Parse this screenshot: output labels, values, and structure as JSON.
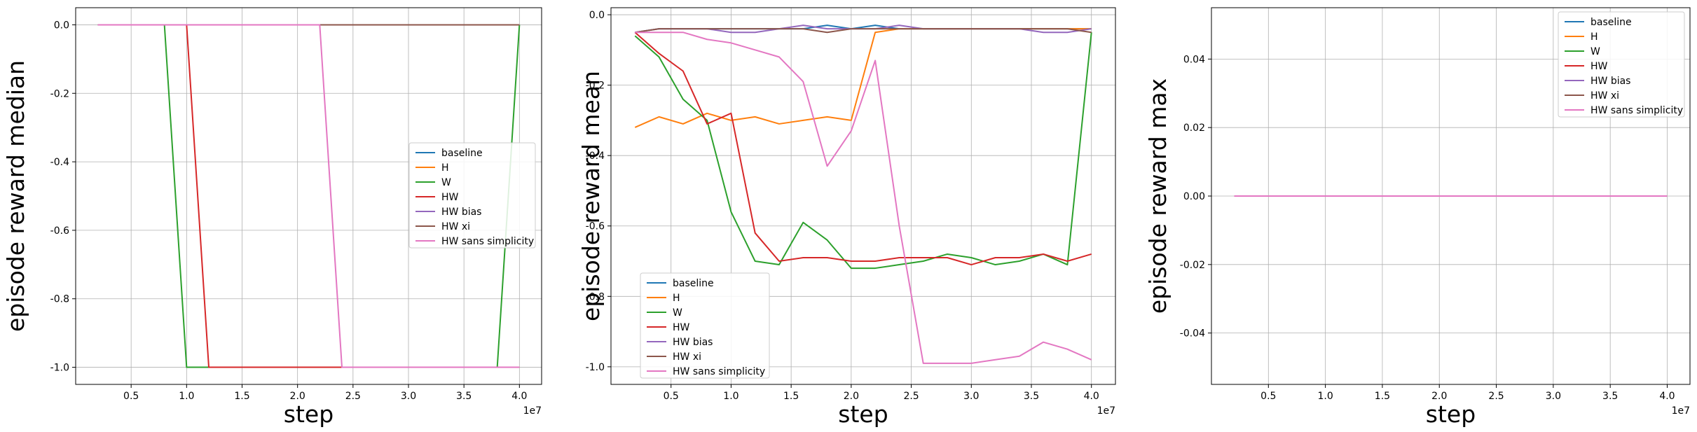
{
  "chart_data": [
    {
      "type": "line",
      "title": "",
      "xlabel": "step",
      "ylabel": "episode reward median",
      "x_offset_label": "1e7",
      "xlim": [
        0,
        4.2
      ],
      "ylim": [
        -1.05,
        0.05
      ],
      "xticks": [
        "0.5",
        "1.0",
        "1.5",
        "2.0",
        "2.5",
        "3.0",
        "3.5",
        "4.0"
      ],
      "yticks": [
        "-1.0",
        "-0.8",
        "-0.6",
        "-0.4",
        "-0.2",
        "0.0"
      ],
      "grid": true,
      "legend_position": "center-right",
      "x": [
        0.2,
        0.4,
        0.6,
        0.8,
        1.0,
        1.2,
        1.4,
        1.6,
        1.8,
        2.0,
        2.2,
        2.4,
        2.6,
        2.8,
        3.0,
        3.2,
        3.4,
        3.6,
        3.8,
        4.0
      ],
      "series": [
        {
          "name": "baseline",
          "color": "#1f77b4",
          "values": [
            0,
            0,
            0,
            0,
            0,
            0,
            0,
            0,
            0,
            0,
            0,
            0,
            0,
            0,
            0,
            0,
            0,
            0,
            0,
            0
          ]
        },
        {
          "name": "H",
          "color": "#ff7f0e",
          "values": [
            0,
            0,
            0,
            0,
            0,
            0,
            0,
            0,
            0,
            0,
            0,
            0,
            0,
            0,
            0,
            0,
            0,
            0,
            0,
            0
          ]
        },
        {
          "name": "W",
          "color": "#2ca02c",
          "values": [
            0,
            0,
            0,
            0,
            -1,
            -1,
            -1,
            -1,
            -1,
            -1,
            -1,
            -1,
            -1,
            -1,
            -1,
            -1,
            -1,
            -1,
            -1,
            0
          ]
        },
        {
          "name": "HW",
          "color": "#d62728",
          "values": [
            0,
            0,
            0,
            0,
            0,
            -1,
            -1,
            -1,
            -1,
            -1,
            -1,
            -1,
            -1,
            -1,
            -1,
            -1,
            -1,
            -1,
            -1,
            -1
          ]
        },
        {
          "name": "HW bias",
          "color": "#9467bd",
          "values": [
            0,
            0,
            0,
            0,
            0,
            0,
            0,
            0,
            0,
            0,
            0,
            0,
            0,
            0,
            0,
            0,
            0,
            0,
            0,
            0
          ]
        },
        {
          "name": "HW xi",
          "color": "#8c564b",
          "values": [
            0,
            0,
            0,
            0,
            0,
            0,
            0,
            0,
            0,
            0,
            0,
            0,
            0,
            0,
            0,
            0,
            0,
            0,
            0,
            0
          ]
        },
        {
          "name": "HW sans simplicity",
          "color": "#e377c2",
          "values": [
            0,
            0,
            0,
            0,
            0,
            0,
            0,
            0,
            0,
            0,
            0,
            -1,
            -1,
            -1,
            -1,
            -1,
            -1,
            -1,
            -1,
            -1
          ]
        }
      ]
    },
    {
      "type": "line",
      "title": "",
      "xlabel": "step",
      "ylabel": "episode reward mean",
      "x_offset_label": "1e7",
      "xlim": [
        0,
        4.2
      ],
      "ylim": [
        -1.05,
        0.02
      ],
      "xticks": [
        "0.5",
        "1.0",
        "1.5",
        "2.0",
        "2.5",
        "3.0",
        "3.5",
        "4.0"
      ],
      "yticks": [
        "-1.0",
        "-0.8",
        "-0.6",
        "-0.4",
        "-0.2",
        "0.0"
      ],
      "grid": true,
      "legend_position": "lower-left",
      "x": [
        0.2,
        0.4,
        0.6,
        0.8,
        1.0,
        1.2,
        1.4,
        1.6,
        1.8,
        2.0,
        2.2,
        2.4,
        2.6,
        2.8,
        3.0,
        3.2,
        3.4,
        3.6,
        3.8,
        4.0
      ],
      "series": [
        {
          "name": "baseline",
          "color": "#1f77b4",
          "values": [
            -0.05,
            -0.04,
            -0.04,
            -0.04,
            -0.04,
            -0.04,
            -0.04,
            -0.04,
            -0.03,
            -0.04,
            -0.03,
            -0.04,
            -0.04,
            -0.04,
            -0.04,
            -0.04,
            -0.04,
            -0.04,
            -0.04,
            -0.04
          ]
        },
        {
          "name": "H",
          "color": "#ff7f0e",
          "values": [
            -0.32,
            -0.29,
            -0.31,
            -0.28,
            -0.3,
            -0.29,
            -0.31,
            -0.3,
            -0.29,
            -0.3,
            -0.05,
            -0.04,
            -0.04,
            -0.04,
            -0.04,
            -0.04,
            -0.04,
            -0.04,
            -0.04,
            -0.04
          ]
        },
        {
          "name": "W",
          "color": "#2ca02c",
          "values": [
            -0.06,
            -0.12,
            -0.24,
            -0.3,
            -0.56,
            -0.7,
            -0.71,
            -0.59,
            -0.64,
            -0.72,
            -0.72,
            -0.71,
            -0.7,
            -0.68,
            -0.69,
            -0.71,
            -0.7,
            -0.68,
            -0.71,
            -0.05
          ]
        },
        {
          "name": "HW",
          "color": "#d62728",
          "values": [
            -0.05,
            -0.11,
            -0.16,
            -0.31,
            -0.28,
            -0.62,
            -0.7,
            -0.69,
            -0.69,
            -0.7,
            -0.7,
            -0.69,
            -0.69,
            -0.69,
            -0.71,
            -0.69,
            -0.69,
            -0.68,
            -0.7,
            -0.68
          ]
        },
        {
          "name": "HW bias",
          "color": "#9467bd",
          "values": [
            -0.05,
            -0.04,
            -0.04,
            -0.04,
            -0.05,
            -0.05,
            -0.04,
            -0.03,
            -0.04,
            -0.04,
            -0.04,
            -0.03,
            -0.04,
            -0.04,
            -0.04,
            -0.04,
            -0.04,
            -0.05,
            -0.05,
            -0.04
          ]
        },
        {
          "name": "HW xi",
          "color": "#8c564b",
          "values": [
            -0.05,
            -0.04,
            -0.04,
            -0.04,
            -0.04,
            -0.04,
            -0.04,
            -0.04,
            -0.05,
            -0.04,
            -0.04,
            -0.04,
            -0.04,
            -0.04,
            -0.04,
            -0.04,
            -0.04,
            -0.04,
            -0.04,
            -0.05
          ]
        },
        {
          "name": "HW sans simplicity",
          "color": "#e377c2",
          "values": [
            -0.05,
            -0.05,
            -0.05,
            -0.07,
            -0.08,
            -0.1,
            -0.12,
            -0.19,
            -0.43,
            -0.33,
            -0.13,
            -0.6,
            -0.99,
            -0.99,
            -0.99,
            -0.98,
            -0.97,
            -0.93,
            -0.95,
            -0.98
          ]
        }
      ]
    },
    {
      "type": "line",
      "title": "",
      "xlabel": "step",
      "ylabel": "episode reward max",
      "x_offset_label": "1e7",
      "xlim": [
        0,
        4.2
      ],
      "ylim": [
        -0.055,
        0.055
      ],
      "xticks": [
        "0.5",
        "1.0",
        "1.5",
        "2.0",
        "2.5",
        "3.0",
        "3.5",
        "4.0"
      ],
      "yticks": [
        "-0.04",
        "-0.02",
        "0.00",
        "0.02",
        "0.04"
      ],
      "grid": true,
      "legend_position": "top-right",
      "x": [
        0.2,
        0.4,
        0.6,
        0.8,
        1.0,
        1.2,
        1.4,
        1.6,
        1.8,
        2.0,
        2.2,
        2.4,
        2.6,
        2.8,
        3.0,
        3.2,
        3.4,
        3.6,
        3.8,
        4.0
      ],
      "series": [
        {
          "name": "baseline",
          "color": "#1f77b4",
          "values": [
            0,
            0,
            0,
            0,
            0,
            0,
            0,
            0,
            0,
            0,
            0,
            0,
            0,
            0,
            0,
            0,
            0,
            0,
            0,
            0
          ]
        },
        {
          "name": "H",
          "color": "#ff7f0e",
          "values": [
            0,
            0,
            0,
            0,
            0,
            0,
            0,
            0,
            0,
            0,
            0,
            0,
            0,
            0,
            0,
            0,
            0,
            0,
            0,
            0
          ]
        },
        {
          "name": "W",
          "color": "#2ca02c",
          "values": [
            0,
            0,
            0,
            0,
            0,
            0,
            0,
            0,
            0,
            0,
            0,
            0,
            0,
            0,
            0,
            0,
            0,
            0,
            0,
            0
          ]
        },
        {
          "name": "HW",
          "color": "#d62728",
          "values": [
            0,
            0,
            0,
            0,
            0,
            0,
            0,
            0,
            0,
            0,
            0,
            0,
            0,
            0,
            0,
            0,
            0,
            0,
            0,
            0
          ]
        },
        {
          "name": "HW bias",
          "color": "#9467bd",
          "values": [
            0,
            0,
            0,
            0,
            0,
            0,
            0,
            0,
            0,
            0,
            0,
            0,
            0,
            0,
            0,
            0,
            0,
            0,
            0,
            0
          ]
        },
        {
          "name": "HW xi",
          "color": "#8c564b",
          "values": [
            0,
            0,
            0,
            0,
            0,
            0,
            0,
            0,
            0,
            0,
            0,
            0,
            0,
            0,
            0,
            0,
            0,
            0,
            0,
            0
          ]
        },
        {
          "name": "HW sans simplicity",
          "color": "#e377c2",
          "values": [
            0,
            0,
            0,
            0,
            0,
            0,
            0,
            0,
            0,
            0,
            0,
            0,
            0,
            0,
            0,
            0,
            0,
            0,
            0,
            0
          ]
        }
      ]
    }
  ]
}
